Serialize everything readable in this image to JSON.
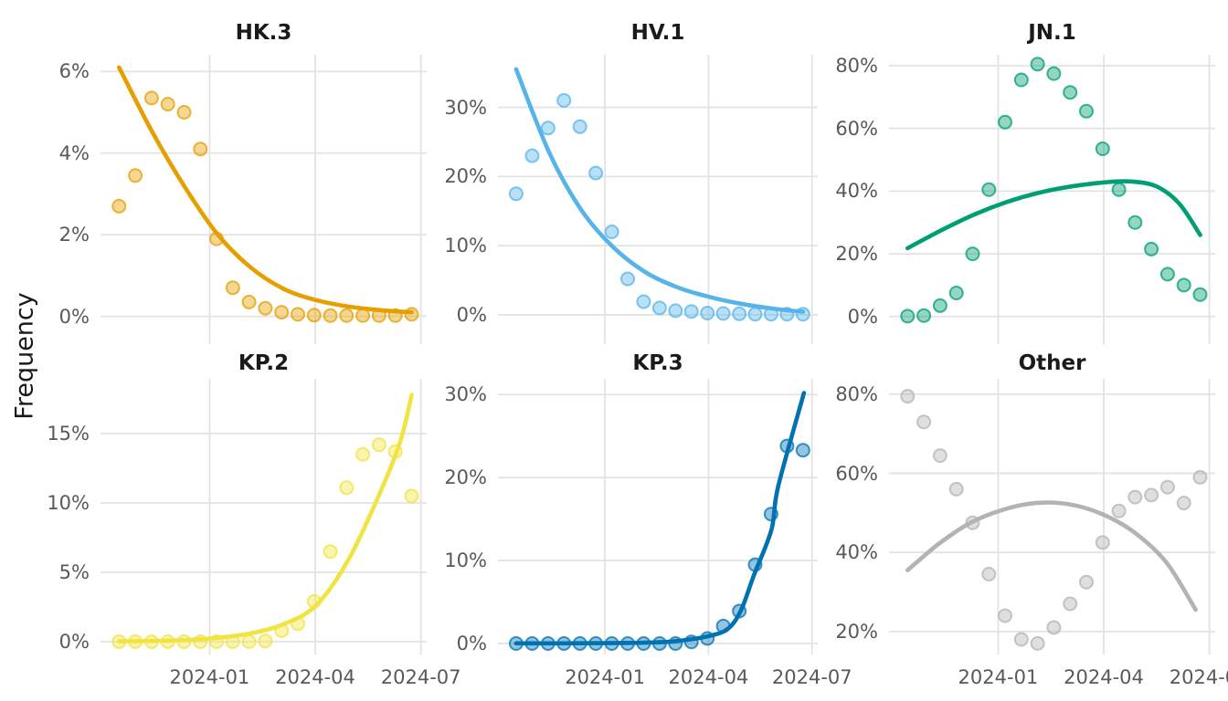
{
  "chart_data": {
    "type": "scatter",
    "title": "",
    "ylabel": "Frequency",
    "grid": true,
    "legend": "none",
    "x_domain": [
      "2023-09-29",
      "2024-07-06"
    ],
    "x_ticks": [
      {
        "date": "2024-01-01",
        "label": "2024-01"
      },
      {
        "date": "2024-04-01",
        "label": "2024-04"
      },
      {
        "date": "2024-07-01",
        "label": "2024-07"
      }
    ],
    "dates": [
      "2023-10-15",
      "2023-10-29",
      "2023-11-12",
      "2023-11-26",
      "2023-12-10",
      "2023-12-24",
      "2024-01-07",
      "2024-01-21",
      "2024-02-04",
      "2024-02-18",
      "2024-03-03",
      "2024-03-17",
      "2024-03-31",
      "2024-04-14",
      "2024-04-28",
      "2024-05-12",
      "2024-05-26",
      "2024-06-09",
      "2024-06-23"
    ],
    "facets": [
      {
        "name": "HK.3",
        "color": "#E69F00",
        "y_domain": [
          -0.68,
          6.41
        ],
        "y_ticks": [
          {
            "v": 0,
            "label": "0%"
          },
          {
            "v": 2,
            "label": "2%"
          },
          {
            "v": 4,
            "label": "4%"
          },
          {
            "v": 6,
            "label": "6%"
          }
        ],
        "values": [
          2.7,
          3.45,
          5.35,
          5.2,
          5.0,
          4.1,
          1.9,
          0.7,
          0.35,
          0.2,
          0.1,
          0.05,
          0.03,
          0.02,
          0.02,
          0.02,
          0.02,
          0.02,
          0.05
        ],
        "trend": [
          [
            0.057,
            6.1
          ],
          [
            0.16,
            4.5
          ],
          [
            0.26,
            3.15
          ],
          [
            0.36,
            2.0
          ],
          [
            0.46,
            1.2
          ],
          [
            0.56,
            0.68
          ],
          [
            0.66,
            0.4
          ],
          [
            0.76,
            0.24
          ],
          [
            0.86,
            0.15
          ],
          [
            0.954,
            0.1
          ]
        ]
      },
      {
        "name": "HV.1",
        "color": "#56B4E9",
        "y_domain": [
          -4.23,
          37.6
        ],
        "y_ticks": [
          {
            "v": 0,
            "label": "0%"
          },
          {
            "v": 10,
            "label": "10%"
          },
          {
            "v": 20,
            "label": "20%"
          },
          {
            "v": 30,
            "label": "30%"
          }
        ],
        "values": [
          17.5,
          23,
          27,
          31,
          27.2,
          20.5,
          12,
          5.2,
          1.9,
          1.0,
          0.6,
          0.5,
          0.25,
          0.2,
          0.15,
          0.1,
          0.1,
          0.1,
          0.1
        ],
        "trend": [
          [
            0.057,
            35.5
          ],
          [
            0.16,
            23.5
          ],
          [
            0.26,
            15.2
          ],
          [
            0.36,
            9.8
          ],
          [
            0.46,
            6.2
          ],
          [
            0.56,
            4.0
          ],
          [
            0.66,
            2.6
          ],
          [
            0.76,
            1.6
          ],
          [
            0.86,
            0.9
          ],
          [
            0.954,
            0.45
          ]
        ]
      },
      {
        "name": "JN.1",
        "color": "#009E73",
        "y_domain": [
          -8.8,
          83.5
        ],
        "y_ticks": [
          {
            "v": 0,
            "label": "0%"
          },
          {
            "v": 20,
            "label": "20%"
          },
          {
            "v": 40,
            "label": "40%"
          },
          {
            "v": 60,
            "label": "60%"
          },
          {
            "v": 80,
            "label": "80%"
          }
        ],
        "values": [
          0.1,
          0.3,
          3.5,
          7.5,
          20,
          40.5,
          62,
          75.5,
          80.5,
          77.5,
          71.5,
          65.5,
          53.5,
          40.5,
          30,
          21.5,
          13.5,
          10,
          7
        ],
        "trend": [
          [
            0.057,
            21.8
          ],
          [
            0.16,
            27.5
          ],
          [
            0.26,
            32.5
          ],
          [
            0.36,
            36.5
          ],
          [
            0.46,
            39.5
          ],
          [
            0.56,
            41.5
          ],
          [
            0.66,
            42.8
          ],
          [
            0.74,
            43.1
          ],
          [
            0.82,
            41.5
          ],
          [
            0.89,
            36
          ],
          [
            0.954,
            26
          ]
        ]
      },
      {
        "name": "KP.2",
        "color": "#F0E442",
        "y_domain": [
          -0.92,
          18.95
        ],
        "y_ticks": [
          {
            "v": 0,
            "label": "0%"
          },
          {
            "v": 5,
            "label": "5%"
          },
          {
            "v": 10,
            "label": "10%"
          },
          {
            "v": 15,
            "label": "15%"
          }
        ],
        "values": [
          0,
          0,
          0,
          0,
          0,
          0,
          0,
          0,
          0,
          0.05,
          0.8,
          1.3,
          2.9,
          6.5,
          11.1,
          13.5,
          14.2,
          13.7,
          10.5
        ],
        "trend": [
          [
            0.057,
            0.03
          ],
          [
            0.16,
            0.06
          ],
          [
            0.26,
            0.12
          ],
          [
            0.36,
            0.28
          ],
          [
            0.46,
            0.6
          ],
          [
            0.56,
            1.25
          ],
          [
            0.66,
            2.6
          ],
          [
            0.76,
            5.9
          ],
          [
            0.86,
            10.9
          ],
          [
            0.92,
            14.5
          ],
          [
            0.954,
            17.8
          ]
        ]
      },
      {
        "name": "KP.3",
        "color": "#0072B2",
        "y_domain": [
          -1.32,
          31.9
        ],
        "y_ticks": [
          {
            "v": 0,
            "label": "0%"
          },
          {
            "v": 10,
            "label": "10%"
          },
          {
            "v": 20,
            "label": "20%"
          },
          {
            "v": 30,
            "label": "30%"
          }
        ],
        "values": [
          0,
          0,
          0,
          0,
          0,
          0,
          0,
          0,
          0,
          0,
          0,
          0.2,
          0.6,
          2.1,
          3.9,
          9.5,
          15.6,
          23.8,
          23.3
        ],
        "trend": [
          [
            0.057,
            0.02
          ],
          [
            0.26,
            0.03
          ],
          [
            0.46,
            0.1
          ],
          [
            0.56,
            0.3
          ],
          [
            0.66,
            0.9
          ],
          [
            0.72,
            1.8
          ],
          [
            0.76,
            4.0
          ],
          [
            0.8,
            8.2
          ],
          [
            0.855,
            13.7
          ],
          [
            0.876,
            18.9
          ],
          [
            0.957,
            30.2
          ]
        ]
      },
      {
        "name": "Other",
        "color": "#B3B3B3",
        "y_domain": [
          14.2,
          83.9
        ],
        "y_ticks": [
          {
            "v": 20,
            "label": "20%"
          },
          {
            "v": 40,
            "label": "40%"
          },
          {
            "v": 60,
            "label": "60%"
          },
          {
            "v": 80,
            "label": "80%"
          }
        ],
        "values": [
          79.5,
          73,
          64.5,
          56,
          47.5,
          34.5,
          24,
          18,
          17,
          21,
          27,
          32.5,
          42.5,
          50.5,
          54,
          54.5,
          56.5,
          52.5,
          59
        ],
        "trend": [
          [
            0.057,
            35.5
          ],
          [
            0.15,
            42
          ],
          [
            0.25,
            47.5
          ],
          [
            0.35,
            50.8
          ],
          [
            0.45,
            52.5
          ],
          [
            0.55,
            52.2
          ],
          [
            0.65,
            49.8
          ],
          [
            0.75,
            45.2
          ],
          [
            0.85,
            37.5
          ],
          [
            0.94,
            25.5
          ]
        ]
      }
    ],
    "style": {
      "grid_color": "#e3e3e3",
      "tick_label_color": "#595959",
      "title_color": "#1a1a1a",
      "point_radius": 7,
      "line_width": 4.6
    }
  }
}
